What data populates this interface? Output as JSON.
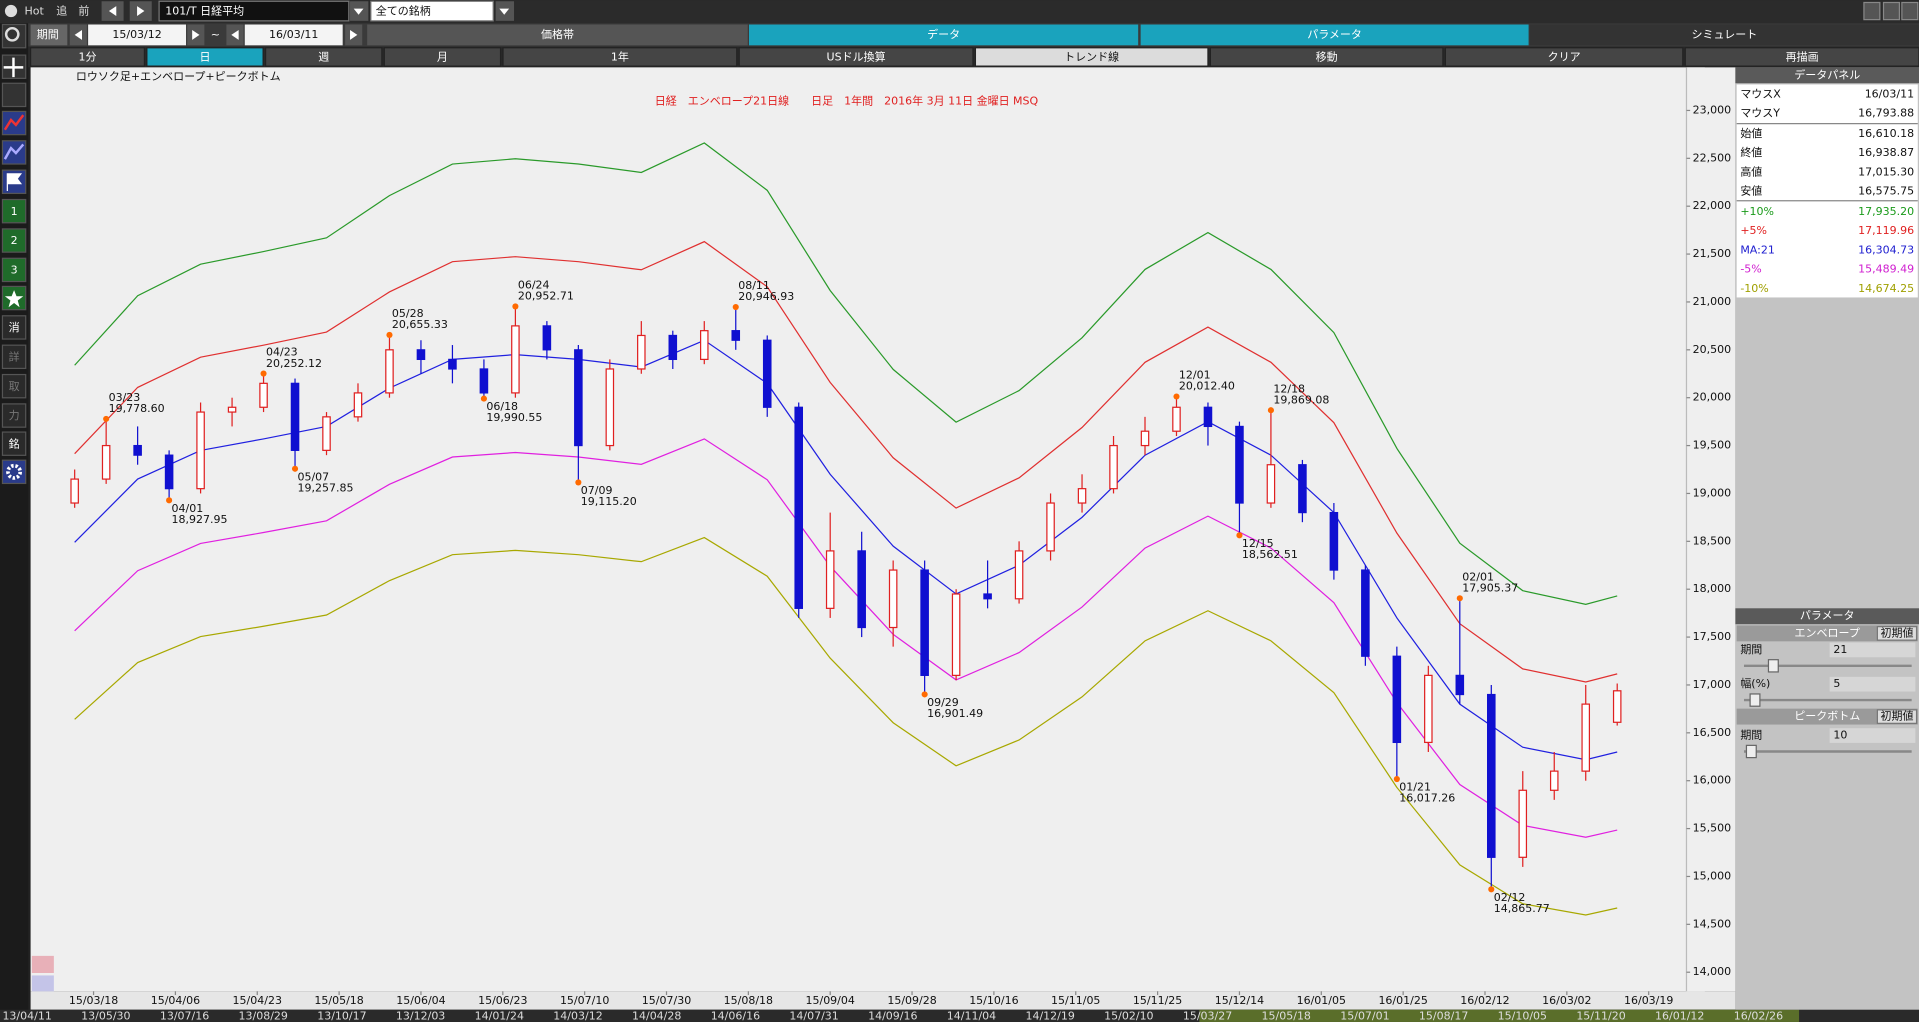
{
  "toolbar": {
    "hot": "Hot",
    "add": "追",
    "prev": "前",
    "symbol": "101/T 日経平均",
    "list": "全ての銘柄"
  },
  "period": {
    "label": "期間",
    "from": "15/03/12",
    "sep": "~",
    "to": "16/03/11"
  },
  "tabs": [
    "価格帯",
    "データ",
    "パラメータ",
    "シミュレート"
  ],
  "buttons": [
    "1分",
    "日",
    "週",
    "月",
    "1年",
    "USドル換算",
    "トレンド線",
    "移動",
    "クリア",
    "再描画"
  ],
  "sidebar": [
    "1",
    "2",
    "3",
    "消",
    "詳",
    "取",
    "力",
    "銘"
  ],
  "chart_data": {
    "type": "candlestick",
    "title": "日経　エンベロープ21日線　　日足　1年間　2016年 3月 11日 金曜日 MSQ",
    "subtitle": "ロウソク足+エンベロープ+ピークボトム",
    "ylim": [
      13800,
      23450
    ],
    "xlim": [
      -7,
      256
    ],
    "yticks": [
      {
        "value": 23000,
        "label": "23,000"
      },
      {
        "value": 22500,
        "label": "22,500"
      },
      {
        "value": 22000,
        "label": "22,000"
      },
      {
        "value": 21500,
        "label": "21,500"
      },
      {
        "value": 21000,
        "label": "21,000"
      },
      {
        "value": 20500,
        "label": "20,500"
      },
      {
        "value": 20000,
        "label": "20,000"
      },
      {
        "value": 19500,
        "label": "19,500"
      },
      {
        "value": 19000,
        "label": "19,000"
      },
      {
        "value": 18500,
        "label": "18,500"
      },
      {
        "value": 18000,
        "label": "18,000"
      },
      {
        "value": 17500,
        "label": "17,500"
      },
      {
        "value": 17000,
        "label": "17,000"
      },
      {
        "value": 16500,
        "label": "16,500"
      },
      {
        "value": 16000,
        "label": "16,000"
      },
      {
        "value": 15500,
        "label": "15,500"
      },
      {
        "value": 15000,
        "label": "15,000"
      },
      {
        "value": 14500,
        "label": "14,500"
      },
      {
        "value": 14000,
        "label": "14,000"
      }
    ],
    "xticks": [
      {
        "value": 3,
        "label": "15/03/18"
      },
      {
        "value": 16,
        "label": "15/04/06"
      },
      {
        "value": 29,
        "label": "15/04/23"
      },
      {
        "value": 42,
        "label": "15/05/18"
      },
      {
        "value": 55,
        "label": "15/06/04"
      },
      {
        "value": 68,
        "label": "15/06/23"
      },
      {
        "value": 81,
        "label": "15/07/10"
      },
      {
        "value": 94,
        "label": "15/07/30"
      },
      {
        "value": 107,
        "label": "15/08/18"
      },
      {
        "value": 120,
        "label": "15/09/04"
      },
      {
        "value": 133,
        "label": "15/09/28"
      },
      {
        "value": 146,
        "label": "15/10/16"
      },
      {
        "value": 159,
        "label": "15/11/05"
      },
      {
        "value": 172,
        "label": "15/11/25"
      },
      {
        "value": 185,
        "label": "15/12/14"
      },
      {
        "value": 198,
        "label": "16/01/05"
      },
      {
        "value": 211,
        "label": "16/01/25"
      },
      {
        "value": 224,
        "label": "16/02/12"
      },
      {
        "value": 237,
        "label": "16/03/02"
      },
      {
        "value": 250,
        "label": "16/03/19"
      }
    ],
    "up_color": "#e02020",
    "down_color": "#1010d0",
    "x": [
      0,
      5,
      10,
      15,
      20,
      25,
      30,
      35,
      40,
      45,
      50,
      55,
      60,
      65,
      70,
      75,
      80,
      85,
      90,
      95,
      100,
      105,
      110,
      115,
      120,
      125,
      130,
      135,
      140,
      145,
      150,
      155,
      160,
      165,
      170,
      175,
      180,
      185,
      190,
      195,
      200,
      205,
      210,
      215,
      220,
      225,
      230,
      235,
      240,
      245
    ],
    "open": [
      18900,
      19150,
      19500,
      19400,
      19050,
      19850,
      19900,
      20150,
      19450,
      19800,
      20050,
      20500,
      20400,
      20300,
      20050,
      20750,
      20500,
      19500,
      20300,
      20650,
      20400,
      20700,
      20600,
      19900,
      17800,
      18400,
      17600,
      18200,
      17100,
      17950,
      17900,
      18400,
      18900,
      19050,
      19500,
      19650,
      19900,
      19700,
      18900,
      19300,
      18800,
      18200,
      17300,
      16400,
      17100,
      16900,
      15200,
      15900,
      16100,
      16610.18
    ],
    "high": [
      19250,
      19778.6,
      19700,
      19450,
      19950,
      20000,
      20252.12,
      20200,
      19850,
      20150,
      20655.33,
      20600,
      20550,
      20400,
      20952.71,
      20800,
      20550,
      20400,
      20800,
      20700,
      20800,
      20946.93,
      20650,
      19950,
      18800,
      18600,
      18300,
      18300,
      18000,
      18300,
      18500,
      19000,
      19200,
      19600,
      19800,
      20012.4,
      19950,
      19750,
      19869.08,
      19350,
      18900,
      18250,
      17400,
      17200,
      17905.37,
      17000,
      16100,
      16300,
      17000,
      17015.3
    ],
    "low": [
      18850,
      19100,
      19300,
      18927.95,
      19000,
      19700,
      19850,
      19257.85,
      19400,
      19750,
      20000,
      20250,
      20150,
      19990.55,
      20000,
      20400,
      19115.2,
      19450,
      20250,
      20300,
      20350,
      20500,
      19800,
      17700,
      17700,
      17500,
      17400,
      16901.49,
      17050,
      17800,
      17850,
      18300,
      18800,
      19000,
      19400,
      19600,
      19500,
      18562.51,
      18850,
      18700,
      18100,
      17200,
      16017.26,
      16300,
      16800,
      14865.77,
      15100,
      15800,
      16000,
      16575.75
    ],
    "close": [
      19150,
      19500,
      19400,
      19050,
      19850,
      19900,
      20150,
      19450,
      19800,
      20050,
      20500,
      20400,
      20300,
      20050,
      20750,
      20500,
      19500,
      20300,
      20650,
      20400,
      20700,
      20600,
      19900,
      17800,
      18400,
      17600,
      18200,
      17100,
      17950,
      17900,
      18400,
      18900,
      19050,
      19500,
      19650,
      19900,
      19700,
      18900,
      19300,
      18800,
      18200,
      17300,
      16400,
      17100,
      16900,
      15200,
      15900,
      16100,
      16800,
      16938.87
    ],
    "envelope": {
      "x": [
        0,
        10,
        20,
        30,
        40,
        50,
        60,
        70,
        80,
        90,
        100,
        110,
        120,
        130,
        140,
        150,
        160,
        170,
        180,
        190,
        200,
        210,
        220,
        230,
        240,
        245
      ],
      "series": [
        {
          "color": "#2a9a2a",
          "values": [
            20339,
            21065,
            21395,
            21527,
            21670,
            22110,
            22440,
            22495,
            22440,
            22352,
            22660,
            22165,
            21120,
            20295,
            19745,
            20075,
            20625,
            21340,
            21725,
            21340,
            20680,
            19470,
            18480,
            17985,
            17842,
            17930
          ]
        },
        {
          "color": "#e03030",
          "values": [
            19415,
            20108,
            20423,
            20549,
            20685,
            21105,
            21420,
            21473,
            21420,
            21336,
            21630,
            21158,
            20160,
            19373,
            18848,
            19163,
            19688,
            20370,
            20738,
            20370,
            19740,
            18585,
            17640,
            17168,
            17031,
            17115
          ]
        },
        {
          "color": "#2020e0",
          "values": [
            18490,
            19150,
            19450,
            19570,
            19700,
            20100,
            20400,
            20450,
            20400,
            20320,
            20600,
            20150,
            19200,
            18450,
            17950,
            18250,
            18750,
            19400,
            19750,
            19400,
            18800,
            17700,
            16800,
            16350,
            16220,
            16300
          ]
        },
        {
          "color": "#e020e0",
          "values": [
            17566,
            18193,
            18478,
            18592,
            18715,
            19095,
            19380,
            19428,
            19380,
            19304,
            19570,
            19143,
            18240,
            17528,
            17053,
            17338,
            17813,
            18430,
            18763,
            18430,
            17860,
            16815,
            15960,
            15533,
            15409,
            15485
          ]
        },
        {
          "color": "#a8a800",
          "values": [
            16641,
            17235,
            17505,
            17613,
            17730,
            18090,
            18360,
            18405,
            18360,
            18288,
            18540,
            18135,
            17280,
            16605,
            16155,
            16425,
            16875,
            17460,
            17775,
            17460,
            16920,
            15930,
            15120,
            14715,
            14598,
            14670
          ]
        }
      ]
    },
    "annotations": [
      {
        "kind": "peak",
        "x": 5,
        "value": 19778.6,
        "date": "03/23",
        "value_label": "19,778.60"
      },
      {
        "kind": "bottom",
        "x": 15,
        "value": 18927.95,
        "date": "04/01",
        "value_label": "18,927.95"
      },
      {
        "kind": "peak",
        "x": 30,
        "value": 20252.12,
        "date": "04/23",
        "value_label": "20,252.12"
      },
      {
        "kind": "bottom",
        "x": 35,
        "value": 19257.85,
        "date": "05/07",
        "value_label": "19,257.85"
      },
      {
        "kind": "peak",
        "x": 50,
        "value": 20655.33,
        "date": "05/28",
        "value_label": "20,655.33"
      },
      {
        "kind": "bottom",
        "x": 65,
        "value": 19990.55,
        "date": "06/18",
        "value_label": "19,990.55"
      },
      {
        "kind": "peak",
        "x": 70,
        "value": 20952.71,
        "date": "06/24",
        "value_label": "20,952.71"
      },
      {
        "kind": "bottom",
        "x": 80,
        "value": 19115.2,
        "date": "07/09",
        "value_label": "19,115.20"
      },
      {
        "kind": "peak",
        "x": 105,
        "value": 20946.93,
        "date": "08/11",
        "value_label": "20,946.93"
      },
      {
        "kind": "bottom",
        "x": 135,
        "value": 16901.49,
        "date": "09/29",
        "value_label": "16,901.49"
      },
      {
        "kind": "peak",
        "x": 175,
        "value": 20012.4,
        "date": "12/01",
        "value_label": "20,012.40"
      },
      {
        "kind": "bottom",
        "x": 185,
        "value": 18562.51,
        "date": "12/15",
        "value_label": "18,562.51"
      },
      {
        "kind": "peak",
        "x": 190,
        "value": 19869.08,
        "date": "12/18",
        "value_label": "19,869.08"
      },
      {
        "kind": "bottom",
        "x": 210,
        "value": 16017.26,
        "date": "01/21",
        "value_label": "16,017.26"
      },
      {
        "kind": "peak",
        "x": 220,
        "value": 17905.37,
        "date": "02/01",
        "value_label": "17,905.37"
      },
      {
        "kind": "bottom",
        "x": 225,
        "value": 14865.77,
        "date": "02/12",
        "value_label": "14,865.77"
      }
    ]
  },
  "data_panel": {
    "title": "データパネル",
    "rows": [
      [
        "マウスX",
        "16/03/11"
      ],
      [
        "マウスY",
        "16,793.88"
      ],
      [
        "始値",
        "16,610.18"
      ],
      [
        "終値",
        "16,938.87"
      ],
      [
        "高値",
        "17,015.30"
      ],
      [
        "安値",
        "16,575.75"
      ],
      [
        "+10%",
        "17,935.20"
      ],
      [
        "+5%",
        "17,119.96"
      ],
      [
        "MA:21",
        "16,304.73"
      ],
      [
        "-5%",
        "15,489.49"
      ],
      [
        "-10%",
        "14,674.25"
      ]
    ]
  },
  "params": {
    "title": "パラメータ",
    "envelope": "エンベロープ",
    "reset": "初期値",
    "period_label": "期間",
    "period": 21,
    "width_label": "幅(%)",
    "width": 5,
    "peak_bottom": "ピークボトム",
    "reset2": "初期値",
    "pb_period_label": "期間",
    "pb_period": 10
  },
  "navigator": [
    "13/04/11",
    "13/05/30",
    "13/07/16",
    "13/08/29",
    "13/10/17",
    "13/12/03",
    "14/01/24",
    "14/03/12",
    "14/04/28",
    "14/06/16",
    "14/07/31",
    "14/09/16",
    "14/11/04",
    "14/12/19",
    "15/02/10",
    "15/03/27",
    "15/05/18",
    "15/07/01",
    "15/08/17",
    "15/10/05",
    "15/11/20",
    "16/01/12",
    "16/02/26"
  ]
}
